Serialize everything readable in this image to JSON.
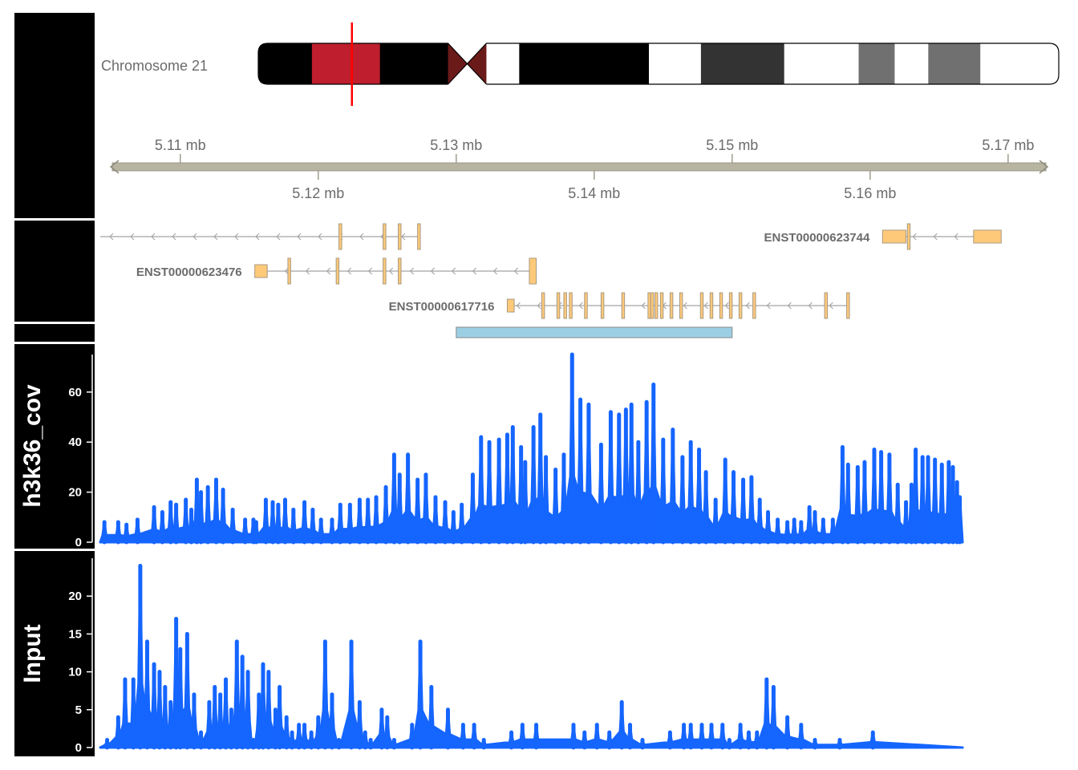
{
  "ideogram": {
    "label": "Chromosome 21",
    "bands_fraction": [
      {
        "start": 0.0,
        "end": 0.067,
        "color": "#000000"
      },
      {
        "start": 0.067,
        "end": 0.152,
        "color": "#be1e2d"
      },
      {
        "start": 0.152,
        "end": 0.237,
        "color": "#000000"
      },
      {
        "start": 0.237,
        "end": 0.285,
        "color": "#6b1a1a"
      },
      {
        "start": 0.285,
        "end": 0.326,
        "color": "#ffffff"
      },
      {
        "start": 0.326,
        "end": 0.488,
        "color": "#000000"
      },
      {
        "start": 0.488,
        "end": 0.553,
        "color": "#ffffff"
      },
      {
        "start": 0.553,
        "end": 0.657,
        "color": "#333333"
      },
      {
        "start": 0.657,
        "end": 0.75,
        "color": "#ffffff"
      },
      {
        "start": 0.75,
        "end": 0.795,
        "color": "#707070"
      },
      {
        "start": 0.795,
        "end": 0.837,
        "color": "#ffffff"
      },
      {
        "start": 0.837,
        "end": 0.902,
        "color": "#707070"
      },
      {
        "start": 0.902,
        "end": 1.0,
        "color": "#ffffff"
      }
    ],
    "centromere_fraction": [
      0.237,
      0.285
    ],
    "marker_fraction": 0.117,
    "marker_color": "#ff0000"
  },
  "chart_data": [
    {
      "type": "genome-axis",
      "range_mb": [
        5.1042,
        5.1728
      ],
      "ticks_top": [
        5.11,
        5.13,
        5.15,
        5.17
      ],
      "ticks_bottom": [
        5.12,
        5.14,
        5.16
      ],
      "tick_labels_top": [
        "5.11 mb",
        "5.13 mb",
        "5.15 mb",
        "5.17 mb"
      ],
      "tick_labels_bottom": [
        "5.12 mb",
        "5.14 mb",
        "5.16 mb"
      ],
      "color": "#b8b4a2"
    },
    {
      "type": "gene-track",
      "transcripts": [
        {
          "label": "",
          "strand": "-",
          "start": 5.1042,
          "end": 5.1273,
          "exons": [
            [
              5.1215,
              5.1217
            ],
            [
              5.1247,
              5.1249
            ],
            [
              5.1258,
              5.126
            ],
            [
              5.1272,
              5.1274
            ]
          ],
          "utr": []
        },
        {
          "label": "ENST00000623476",
          "strand": "-",
          "start": 5.1154,
          "end": 5.1358,
          "exons": [
            [
              5.1178,
              5.118
            ],
            [
              5.1213,
              5.1215
            ],
            [
              5.1247,
              5.1249
            ],
            [
              5.1258,
              5.126
            ],
            [
              5.1353,
              5.1358
            ]
          ],
          "utr": [
            [
              5.1154,
              5.1163
            ]
          ]
        },
        {
          "label": "ENST00000617716",
          "strand": "-",
          "start": 5.1337,
          "end": 5.1584,
          "exons": [
            [
              5.1362,
              5.1364
            ],
            [
              5.1373,
              5.1375
            ],
            [
              5.1378,
              5.138
            ],
            [
              5.1382,
              5.1384
            ],
            [
              5.1393,
              5.1395
            ],
            [
              5.1405,
              5.1407
            ],
            [
              5.142,
              5.1422
            ],
            [
              5.1439,
              5.1441
            ],
            [
              5.1441,
              5.1443
            ],
            [
              5.1444,
              5.1446
            ],
            [
              5.1448,
              5.145
            ],
            [
              5.1455,
              5.1457
            ],
            [
              5.1462,
              5.1464
            ],
            [
              5.1477,
              5.1479
            ],
            [
              5.1484,
              5.1486
            ],
            [
              5.1491,
              5.1493
            ],
            [
              5.1498,
              5.15
            ],
            [
              5.1505,
              5.1507
            ],
            [
              5.1515,
              5.1517
            ],
            [
              5.1567,
              5.1569
            ],
            [
              5.1583,
              5.1585
            ]
          ],
          "utr": [
            [
              5.1337,
              5.1342
            ]
          ]
        },
        {
          "label": "ENST00000623744",
          "strand": "-",
          "start": 5.1609,
          "end": 5.1695,
          "exons": [
            [
              5.1627,
              5.1629
            ]
          ],
          "utr": [
            [
              5.1609,
              5.1626
            ],
            [
              5.1675,
              5.1695
            ]
          ]
        }
      ],
      "highlight": {
        "start": 5.13,
        "end": 5.15,
        "color": "#9ccfe4"
      }
    },
    {
      "type": "histogram",
      "title": "h3k36_cov",
      "ylim": [
        0,
        75
      ],
      "yticks": [
        0,
        20,
        40,
        60
      ],
      "color": "#1565ff",
      "x_range": [
        5.1042,
        5.1667
      ],
      "peaks": [
        [
          5.1045,
          8
        ],
        [
          5.1055,
          8
        ],
        [
          5.1061,
          7
        ],
        [
          5.1069,
          9
        ],
        [
          5.1081,
          14
        ],
        [
          5.1087,
          12
        ],
        [
          5.1093,
          16
        ],
        [
          5.1097,
          15
        ],
        [
          5.1104,
          17
        ],
        [
          5.1108,
          13
        ],
        [
          5.1112,
          25
        ],
        [
          5.1115,
          20
        ],
        [
          5.112,
          22
        ],
        [
          5.1126,
          25
        ],
        [
          5.1131,
          21
        ],
        [
          5.1138,
          13
        ],
        [
          5.1147,
          9
        ],
        [
          5.1153,
          9
        ],
        [
          5.1155,
          8
        ],
        [
          5.1162,
          17
        ],
        [
          5.1167,
          16
        ],
        [
          5.1171,
          15
        ],
        [
          5.1176,
          17
        ],
        [
          5.1182,
          13
        ],
        [
          5.119,
          16
        ],
        [
          5.1196,
          13
        ],
        [
          5.1202,
          9
        ],
        [
          5.121,
          9
        ],
        [
          5.1216,
          15
        ],
        [
          5.1223,
          15
        ],
        [
          5.123,
          17
        ],
        [
          5.1236,
          17
        ],
        [
          5.1242,
          18
        ],
        [
          5.1249,
          22
        ],
        [
          5.1255,
          35
        ],
        [
          5.1259,
          27
        ],
        [
          5.1265,
          35
        ],
        [
          5.1272,
          25
        ],
        [
          5.1278,
          27
        ],
        [
          5.1285,
          18
        ],
        [
          5.1292,
          16
        ],
        [
          5.1298,
          12
        ],
        [
          5.1304,
          15
        ],
        [
          5.1312,
          27
        ],
        [
          5.1318,
          42
        ],
        [
          5.1324,
          40
        ],
        [
          5.1331,
          41
        ],
        [
          5.1337,
          43
        ],
        [
          5.1341,
          46
        ],
        [
          5.1347,
          38
        ],
        [
          5.135,
          32
        ],
        [
          5.1356,
          46
        ],
        [
          5.1361,
          51
        ],
        [
          5.1365,
          34
        ],
        [
          5.1372,
          29
        ],
        [
          5.1378,
          35
        ],
        [
          5.1384,
          75
        ],
        [
          5.139,
          57
        ],
        [
          5.1396,
          55
        ],
        [
          5.1405,
          39
        ],
        [
          5.1412,
          52
        ],
        [
          5.1418,
          51
        ],
        [
          5.1423,
          53
        ],
        [
          5.1427,
          55
        ],
        [
          5.1432,
          40
        ],
        [
          5.1438,
          56
        ],
        [
          5.1443,
          63
        ],
        [
          5.145,
          41
        ],
        [
          5.1457,
          45
        ],
        [
          5.1464,
          34
        ],
        [
          5.147,
          40
        ],
        [
          5.1476,
          37
        ],
        [
          5.1481,
          28
        ],
        [
          5.1488,
          17
        ],
        [
          5.1495,
          33
        ],
        [
          5.1501,
          28
        ],
        [
          5.1508,
          25
        ],
        [
          5.1514,
          26
        ],
        [
          5.152,
          17
        ],
        [
          5.1526,
          12
        ],
        [
          5.1533,
          9
        ],
        [
          5.154,
          8
        ],
        [
          5.1545,
          9
        ],
        [
          5.155,
          8
        ],
        [
          5.1556,
          14
        ],
        [
          5.156,
          12
        ],
        [
          5.1566,
          9
        ],
        [
          5.1573,
          9
        ],
        [
          5.158,
          38
        ],
        [
          5.1584,
          31
        ],
        [
          5.1591,
          30
        ],
        [
          5.1596,
          32
        ],
        [
          5.1603,
          37
        ],
        [
          5.1608,
          36
        ],
        [
          5.1614,
          35
        ],
        [
          5.162,
          23
        ],
        [
          5.1626,
          16
        ],
        [
          5.163,
          23
        ],
        [
          5.1633,
          37
        ],
        [
          5.1638,
          34
        ],
        [
          5.1642,
          34
        ],
        [
          5.1647,
          33
        ],
        [
          5.1652,
          31
        ],
        [
          5.1657,
          32
        ],
        [
          5.166,
          30
        ],
        [
          5.1663,
          24
        ],
        [
          5.1665,
          18
        ]
      ]
    },
    {
      "type": "histogram",
      "title": "Input",
      "ylim": [
        0,
        25
      ],
      "yticks": [
        0,
        5,
        10,
        15,
        20
      ],
      "color": "#1565ff",
      "x_range": [
        5.1042,
        5.1667
      ],
      "peaks": [
        [
          5.1047,
          1
        ],
        [
          5.1055,
          4
        ],
        [
          5.106,
          9
        ],
        [
          5.1066,
          9
        ],
        [
          5.1071,
          24
        ],
        [
          5.1076,
          14
        ],
        [
          5.1081,
          11
        ],
        [
          5.1085,
          10
        ],
        [
          5.1089,
          8
        ],
        [
          5.1093,
          6
        ],
        [
          5.1097,
          17
        ],
        [
          5.11,
          13
        ],
        [
          5.1105,
          15
        ],
        [
          5.111,
          7
        ],
        [
          5.1115,
          2
        ],
        [
          5.1121,
          6
        ],
        [
          5.1125,
          8
        ],
        [
          5.1129,
          7
        ],
        [
          5.1133,
          9
        ],
        [
          5.1137,
          5
        ],
        [
          5.1141,
          14
        ],
        [
          5.1145,
          12
        ],
        [
          5.1149,
          10
        ],
        [
          5.1153,
          1
        ],
        [
          5.1157,
          7
        ],
        [
          5.116,
          11
        ],
        [
          5.1164,
          10
        ],
        [
          5.1169,
          5
        ],
        [
          5.1172,
          8
        ],
        [
          5.1177,
          4
        ],
        [
          5.1181,
          2
        ],
        [
          5.1186,
          3
        ],
        [
          5.119,
          3
        ],
        [
          5.1195,
          2
        ],
        [
          5.12,
          4
        ],
        [
          5.1205,
          14
        ],
        [
          5.121,
          7
        ],
        [
          5.1215,
          1
        ],
        [
          5.1224,
          14
        ],
        [
          5.123,
          6
        ],
        [
          5.1234,
          2
        ],
        [
          5.1238,
          1
        ],
        [
          5.1246,
          5
        ],
        [
          5.125,
          4
        ],
        [
          5.1255,
          1
        ],
        [
          5.1268,
          3
        ],
        [
          5.1274,
          14
        ],
        [
          5.1282,
          8
        ],
        [
          5.1294,
          5
        ],
        [
          5.1305,
          3
        ],
        [
          5.1313,
          3
        ],
        [
          5.132,
          1
        ],
        [
          5.134,
          2
        ],
        [
          5.1348,
          3
        ],
        [
          5.1358,
          3
        ],
        [
          5.1385,
          3
        ],
        [
          5.1393,
          2
        ],
        [
          5.1402,
          3
        ],
        [
          5.1411,
          2
        ],
        [
          5.142,
          6
        ],
        [
          5.1426,
          3
        ],
        [
          5.1435,
          1
        ],
        [
          5.1455,
          2
        ],
        [
          5.1465,
          3
        ],
        [
          5.147,
          3
        ],
        [
          5.1478,
          3
        ],
        [
          5.1485,
          3
        ],
        [
          5.1493,
          3
        ],
        [
          5.1498,
          1
        ],
        [
          5.1506,
          3
        ],
        [
          5.1512,
          2
        ],
        [
          5.1518,
          2
        ],
        [
          5.1525,
          9
        ],
        [
          5.153,
          8
        ],
        [
          5.154,
          4
        ],
        [
          5.155,
          3
        ],
        [
          5.156,
          1
        ],
        [
          5.1578,
          1
        ],
        [
          5.1602,
          2
        ]
      ]
    }
  ]
}
